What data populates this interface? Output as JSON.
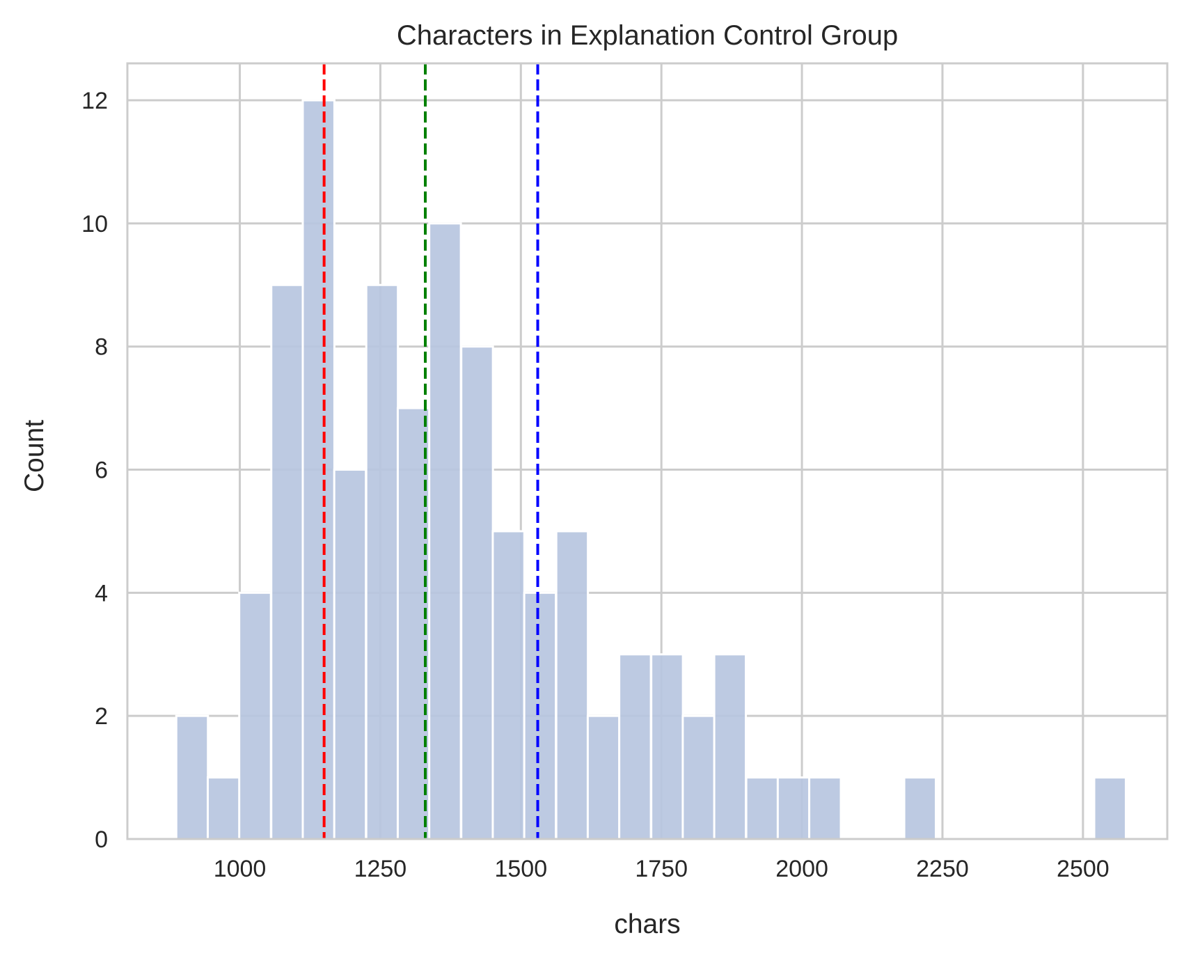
{
  "chart_data": {
    "type": "histogram",
    "title": "Characters in Explanation Control Group",
    "xlabel": "chars",
    "ylabel": "Count",
    "xlim": [
      800,
      2650
    ],
    "ylim": [
      0,
      12.6
    ],
    "xticks": [
      1000,
      1250,
      1500,
      1750,
      2000,
      2250,
      2500
    ],
    "yticks": [
      0,
      2,
      4,
      6,
      8,
      10,
      12
    ],
    "grid": true,
    "bar_color": "#b7c6df",
    "bin_width": 56.3,
    "bins": [
      {
        "start": 887,
        "count": 2
      },
      {
        "start": 943,
        "count": 1
      },
      {
        "start": 999,
        "count": 4
      },
      {
        "start": 1056,
        "count": 9
      },
      {
        "start": 1112,
        "count": 12
      },
      {
        "start": 1168,
        "count": 6
      },
      {
        "start": 1225,
        "count": 9
      },
      {
        "start": 1281,
        "count": 7
      },
      {
        "start": 1337,
        "count": 10
      },
      {
        "start": 1394,
        "count": 8
      },
      {
        "start": 1450,
        "count": 5
      },
      {
        "start": 1506,
        "count": 4
      },
      {
        "start": 1563,
        "count": 5
      },
      {
        "start": 1619,
        "count": 2
      },
      {
        "start": 1675,
        "count": 3
      },
      {
        "start": 1732,
        "count": 3
      },
      {
        "start": 1788,
        "count": 2
      },
      {
        "start": 1844,
        "count": 3
      },
      {
        "start": 1901,
        "count": 1
      },
      {
        "start": 1957,
        "count": 1
      },
      {
        "start": 2013,
        "count": 1
      },
      {
        "start": 2070,
        "count": 0
      },
      {
        "start": 2126,
        "count": 0
      },
      {
        "start": 2182,
        "count": 1
      },
      {
        "start": 2239,
        "count": 0
      },
      {
        "start": 2295,
        "count": 0
      },
      {
        "start": 2351,
        "count": 0
      },
      {
        "start": 2408,
        "count": 0
      },
      {
        "start": 2464,
        "count": 0
      },
      {
        "start": 2520,
        "count": 1
      }
    ],
    "reference_lines": [
      {
        "value": 1150,
        "color": "#ff0000"
      },
      {
        "value": 1330,
        "color": "#008000"
      },
      {
        "value": 1530,
        "color": "#0000ff"
      }
    ]
  }
}
